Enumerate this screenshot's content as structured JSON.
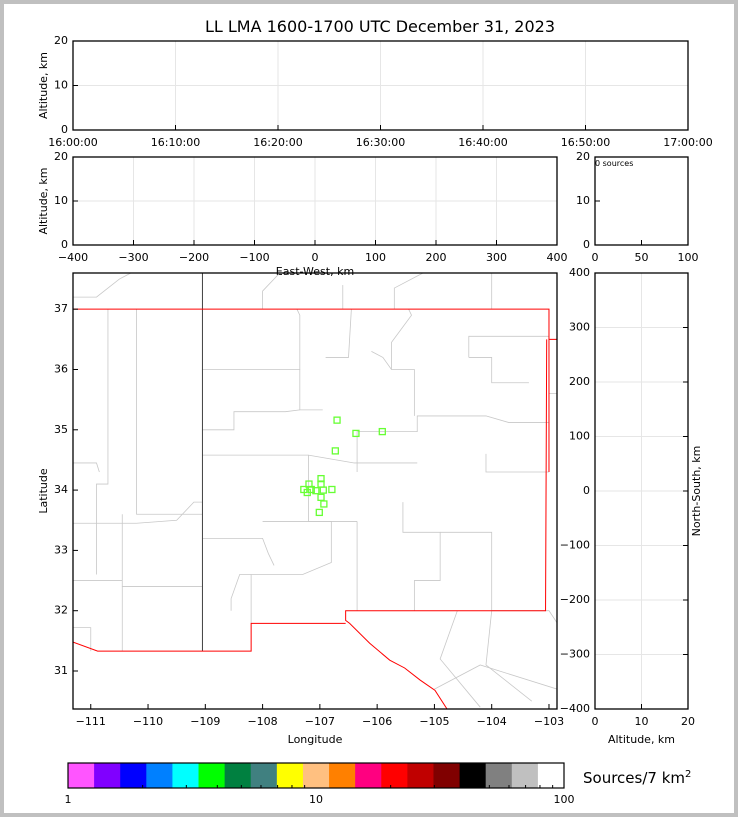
{
  "title": "LL LMA 1600-1700 UTC December 31, 2023",
  "colorbar": {
    "label": "Sources/7 km",
    "label_sup": "2",
    "scale": "log",
    "range": [
      1,
      100
    ],
    "tick_labels": [
      "1",
      "10",
      "100"
    ],
    "colors": [
      "#ff55ff",
      "#8000ff",
      "#0000ff",
      "#0080ff",
      "#00ffff",
      "#00ff00",
      "#008040",
      "#408080",
      "#ffff00",
      "#ffc080",
      "#ff8000",
      "#ff0080",
      "#ff0000",
      "#c00000",
      "#800000",
      "#000000",
      "#808080",
      "#c0c0c0",
      "#ffffff"
    ]
  },
  "chart_data": [
    {
      "id": "time_altitude",
      "type": "scatter",
      "xlabel": "",
      "ylabel": "Altitude, km",
      "xlim": [
        "16:00:00",
        "17:00:00"
      ],
      "ylim": [
        0,
        20
      ],
      "xtick_labels": [
        "16:00:00",
        "16:10:00",
        "16:20:00",
        "16:30:00",
        "16:40:00",
        "16:50:00",
        "17:00:00"
      ],
      "ytick_labels": [
        "0",
        "10",
        "20"
      ],
      "grid": true,
      "points": []
    },
    {
      "id": "ew_altitude",
      "type": "scatter",
      "xlabel": "East-West, km",
      "ylabel": "Altitude, km",
      "xlim": [
        -400,
        400
      ],
      "ylim": [
        0,
        20
      ],
      "xtick_labels": [
        "−400",
        "−300",
        "−200",
        "−100",
        "0",
        "100",
        "200",
        "300",
        "400"
      ],
      "ytick_labels": [
        "0",
        "10",
        "20"
      ],
      "grid": true,
      "points": []
    },
    {
      "id": "histogram",
      "type": "bar",
      "annotation": "0 sources",
      "xlim": [
        0,
        100
      ],
      "ylim": [
        0,
        20
      ],
      "xtick_labels": [
        "0",
        "50",
        "100"
      ],
      "ytick_labels": [
        "0",
        "10",
        "20"
      ],
      "values": []
    },
    {
      "id": "plan_view",
      "type": "scatter",
      "xlabel": "Longitude",
      "ylabel": "Latitude",
      "xlim": [
        -111.31,
        -102.86
      ],
      "ylim": [
        30.37,
        37.6
      ],
      "xtick_labels": [
        "−111",
        "−110",
        "−109",
        "−108",
        "−107",
        "−106",
        "−105",
        "−104",
        "−103"
      ],
      "ytick_labels": [
        "31",
        "32",
        "33",
        "34",
        "35",
        "36",
        "37"
      ],
      "marker_color": "#66ff33",
      "points": [
        [
          -106.7,
          35.16
        ],
        [
          -106.37,
          34.94
        ],
        [
          -105.91,
          34.97
        ],
        [
          -106.73,
          34.65
        ],
        [
          -106.98,
          34.19
        ],
        [
          -107.19,
          34.1
        ],
        [
          -106.98,
          34.1
        ],
        [
          -106.79,
          34.01
        ],
        [
          -107.28,
          34.01
        ],
        [
          -107.15,
          34.01
        ],
        [
          -106.94,
          34.0
        ],
        [
          -107.22,
          33.96
        ],
        [
          -107.07,
          33.99
        ],
        [
          -106.98,
          33.88
        ],
        [
          -106.93,
          33.77
        ],
        [
          -107.01,
          33.63
        ]
      ]
    },
    {
      "id": "altitude_ns",
      "type": "scatter",
      "xlabel": "Altitude, km",
      "ylabel": "North-South, km",
      "xlim": [
        0,
        20
      ],
      "ylim": [
        -400,
        400
      ],
      "xtick_labels": [
        "0",
        "10",
        "20"
      ],
      "ytick_labels": [
        "−400",
        "−300",
        "−200",
        "−100",
        "0",
        "100",
        "200",
        "300",
        "400"
      ],
      "grid": true,
      "points": []
    }
  ]
}
